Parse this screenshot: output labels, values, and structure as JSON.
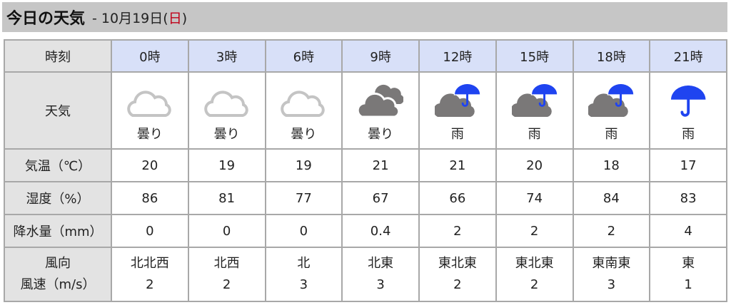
{
  "header": {
    "title": "今日の天気",
    "separator": "-",
    "date": "10月19日(",
    "weekday": "日",
    "date_close": ")",
    "weekday_color": "#c00018"
  },
  "labels": {
    "time": "時刻",
    "weather": "天気",
    "temp": "気温（℃）",
    "humidity": "湿度（%）",
    "precip": "降水量（mm）",
    "wind_dir": "風向",
    "wind_speed": "風速（m/s）"
  },
  "colors": {
    "header_bg": "#c6c6c6",
    "time_bg": "#d8e0f8",
    "label_bg": "#e3e3e3",
    "umbrella": "#1f44f0",
    "cloud_light": "#c4c4c4",
    "cloud_dark": "#7a7878"
  },
  "slots": [
    {
      "time": "0時",
      "icon": "cloud-light-icon",
      "weather": "曇り",
      "temp": "20",
      "humidity": "86",
      "precip": "0",
      "wind_dir": "北北西",
      "wind_speed": "2"
    },
    {
      "time": "3時",
      "icon": "cloud-light-icon",
      "weather": "曇り",
      "temp": "19",
      "humidity": "81",
      "precip": "0",
      "wind_dir": "北西",
      "wind_speed": "2"
    },
    {
      "time": "6時",
      "icon": "cloud-light-icon",
      "weather": "曇り",
      "temp": "19",
      "humidity": "77",
      "precip": "0",
      "wind_dir": "北",
      "wind_speed": "3"
    },
    {
      "time": "9時",
      "icon": "cloud-heavy-icon",
      "weather": "曇り",
      "temp": "21",
      "humidity": "67",
      "precip": "0.4",
      "wind_dir": "北東",
      "wind_speed": "3"
    },
    {
      "time": "12時",
      "icon": "cloud-umbrella-icon",
      "weather": "雨",
      "temp": "21",
      "humidity": "66",
      "precip": "2",
      "wind_dir": "東北東",
      "wind_speed": "2"
    },
    {
      "time": "15時",
      "icon": "cloud-umbrella-icon",
      "weather": "雨",
      "temp": "20",
      "humidity": "74",
      "precip": "2",
      "wind_dir": "東北東",
      "wind_speed": "2"
    },
    {
      "time": "18時",
      "icon": "cloud-umbrella-icon",
      "weather": "雨",
      "temp": "18",
      "humidity": "84",
      "precip": "2",
      "wind_dir": "東南東",
      "wind_speed": "3"
    },
    {
      "time": "21時",
      "icon": "umbrella-icon",
      "weather": "雨",
      "temp": "17",
      "humidity": "83",
      "precip": "4",
      "wind_dir": "東",
      "wind_speed": "1"
    }
  ]
}
